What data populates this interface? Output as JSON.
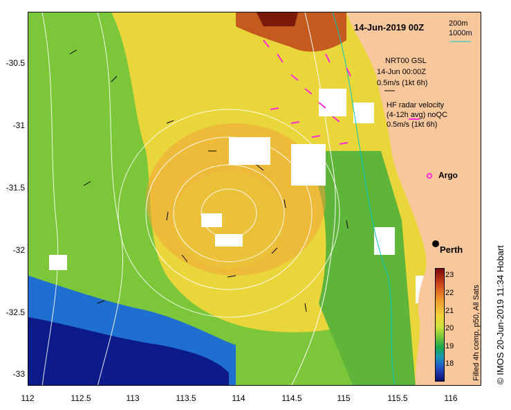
{
  "map": {
    "title": "14-Jun-2019 00Z",
    "y_axis_ticks": [
      "-30.5",
      "-31",
      "-31.5",
      "-32",
      "-32.5",
      "-33"
    ],
    "x_axis_ticks": [
      "112",
      "112.5",
      "113",
      "113.5",
      "114",
      "114.5",
      "115",
      "115.5",
      "116"
    ],
    "legend": {
      "isobath_shallow": "200m",
      "isobath_deep": "1000m",
      "nrt_line1": "NRT00 GSL",
      "nrt_line2": "14-Jun 00:00Z",
      "nrt_scale": "0.5m/s (1kt 6h)",
      "hf_line1": "HF radar velocity",
      "hf_line2": "(4-12h avg) noQC",
      "hf_scale": "0.5m/s (1kt 6h)"
    },
    "argo_label": "Argo",
    "city_label": "Perth",
    "colorbar": {
      "label": "Filled 4h comp, p50, All Sats",
      "ticks": [
        "23",
        "22",
        "21",
        "20",
        "19",
        "18"
      ]
    },
    "credit": "© IMOS 20-Jun-2019 11:34 Hobart",
    "colors": {
      "land": "#f9c79c",
      "warm": "#f0a43a",
      "hot": "#b8441a",
      "mid": "#e7dc3c",
      "cool": "#5fbf3a",
      "cold": "#1d4fc4",
      "coldest": "#0b127a",
      "hf_arrow": "#ff2bd6",
      "isobath_200": "#00c8c8",
      "cloud": "#ffffff"
    }
  }
}
